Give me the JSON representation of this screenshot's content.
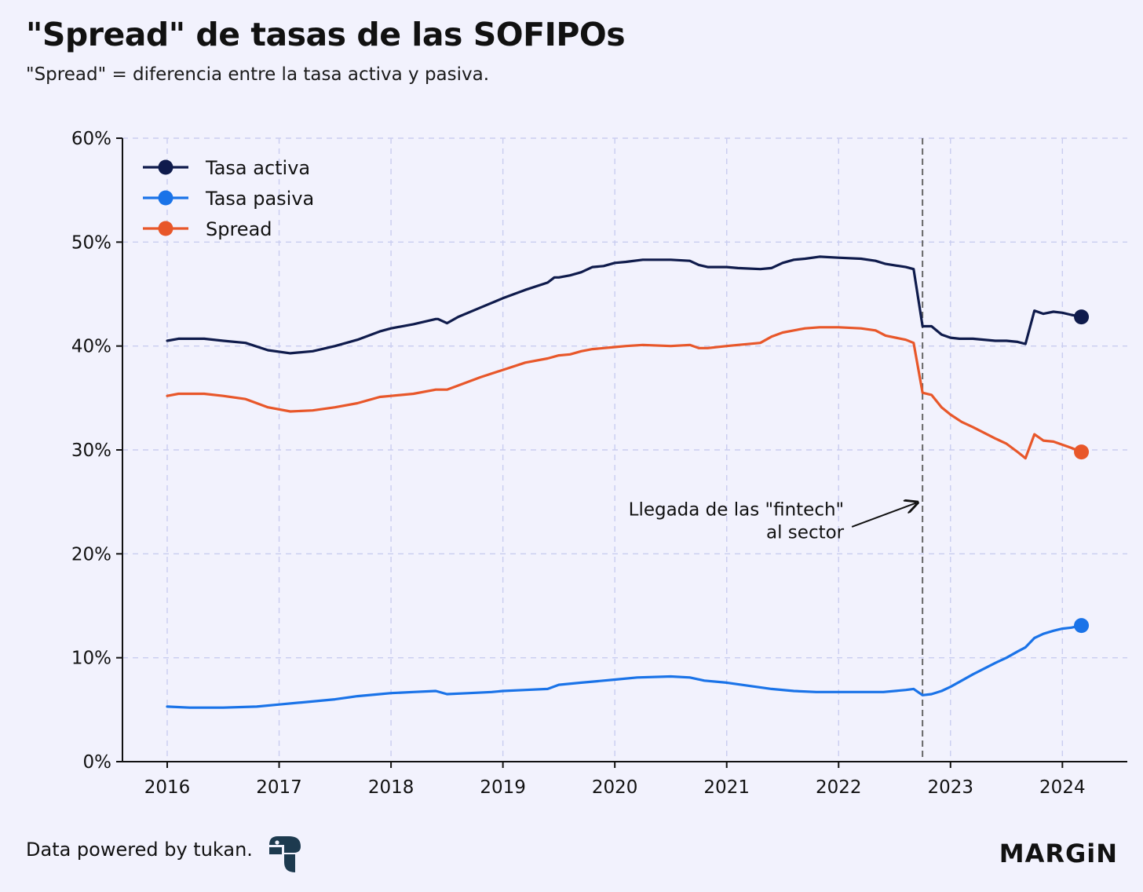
{
  "title": "\"Spread\" de tasas de las SOFIPOs",
  "subtitle": "\"Spread\" = diferencia entre la tasa activa y pasiva.",
  "footer": {
    "credit": "Data powered by tukan.",
    "brand": "MARGiN",
    "logo_icon": "tukan-logo-icon"
  },
  "colors": {
    "background": "#f2f2fd",
    "grid": "#c9cdf0",
    "axis": "#111111",
    "activa": "#0f1b4c",
    "pasiva": "#1a73e8",
    "spread": "#e8572a",
    "annotation_line": "#666666"
  },
  "chart_data": {
    "type": "line",
    "title": "\"Spread\" de tasas de las SOFIPOs",
    "subtitle": "\"Spread\" = diferencia entre la tasa activa y pasiva.",
    "xlabel": "",
    "ylabel": "",
    "xlim": [
      2015.6,
      2024.58
    ],
    "ylim": [
      0,
      60
    ],
    "x_ticks": [
      2016,
      2017,
      2018,
      2019,
      2020,
      2021,
      2022,
      2023,
      2024
    ],
    "x_tick_labels": [
      "2016",
      "2017",
      "2018",
      "2019",
      "2020",
      "2021",
      "2022",
      "2023",
      "2024"
    ],
    "y_ticks": [
      0,
      10,
      20,
      30,
      40,
      50,
      60
    ],
    "y_tick_labels": [
      "0%",
      "10%",
      "20%",
      "30%",
      "40%",
      "50%",
      "60%"
    ],
    "grid": true,
    "legend_position": "top-left",
    "series": [
      {
        "name": "Tasa activa",
        "color": "#0f1b4c",
        "x": [
          2016.0,
          2016.1,
          2016.33,
          2016.5,
          2016.7,
          2016.9,
          2017.1,
          2017.3,
          2017.5,
          2017.7,
          2017.9,
          2018.0,
          2018.2,
          2018.4,
          2018.42,
          2018.5,
          2018.6,
          2018.8,
          2019.0,
          2019.2,
          2019.4,
          2019.46,
          2019.5,
          2019.6,
          2019.7,
          2019.8,
          2019.9,
          2020.0,
          2020.1,
          2020.25,
          2020.5,
          2020.67,
          2020.75,
          2020.83,
          2021.0,
          2021.1,
          2021.3,
          2021.4,
          2021.5,
          2021.6,
          2021.7,
          2021.83,
          2022.0,
          2022.2,
          2022.33,
          2022.42,
          2022.6,
          2022.67,
          2022.75,
          2022.83,
          2022.92,
          2023.0,
          2023.08,
          2023.2,
          2023.4,
          2023.5,
          2023.6,
          2023.67,
          2023.75,
          2023.83,
          2023.92,
          2024.0,
          2024.08,
          2024.17
        ],
        "values": [
          40.5,
          40.7,
          40.7,
          40.5,
          40.3,
          39.6,
          39.3,
          39.5,
          40.0,
          40.6,
          41.4,
          41.7,
          42.1,
          42.6,
          42.6,
          42.2,
          42.8,
          43.7,
          44.6,
          45.4,
          46.1,
          46.6,
          46.6,
          46.8,
          47.1,
          47.6,
          47.7,
          48.0,
          48.1,
          48.3,
          48.3,
          48.2,
          47.8,
          47.6,
          47.6,
          47.5,
          47.4,
          47.5,
          48.0,
          48.3,
          48.4,
          48.6,
          48.5,
          48.4,
          48.2,
          47.9,
          47.6,
          47.4,
          41.9,
          41.9,
          41.1,
          40.8,
          40.7,
          40.7,
          40.5,
          40.5,
          40.4,
          40.2,
          43.4,
          43.1,
          43.3,
          43.2,
          43.0,
          42.8
        ]
      },
      {
        "name": "Tasa pasiva",
        "color": "#1a73e8",
        "x": [
          2016.0,
          2016.2,
          2016.5,
          2016.8,
          2017.0,
          2017.2,
          2017.5,
          2017.7,
          2017.9,
          2018.0,
          2018.2,
          2018.4,
          2018.5,
          2018.7,
          2018.9,
          2019.0,
          2019.2,
          2019.4,
          2019.5,
          2019.7,
          2019.9,
          2020.0,
          2020.2,
          2020.5,
          2020.67,
          2020.8,
          2021.0,
          2021.2,
          2021.4,
          2021.6,
          2021.8,
          2022.0,
          2022.2,
          2022.4,
          2022.6,
          2022.67,
          2022.75,
          2022.83,
          2022.92,
          2023.0,
          2023.1,
          2023.2,
          2023.4,
          2023.5,
          2023.6,
          2023.67,
          2023.75,
          2023.83,
          2023.92,
          2024.0,
          2024.08,
          2024.17
        ],
        "values": [
          5.3,
          5.2,
          5.2,
          5.3,
          5.5,
          5.7,
          6.0,
          6.3,
          6.5,
          6.6,
          6.7,
          6.8,
          6.5,
          6.6,
          6.7,
          6.8,
          6.9,
          7.0,
          7.4,
          7.6,
          7.8,
          7.9,
          8.1,
          8.2,
          8.1,
          7.8,
          7.6,
          7.3,
          7.0,
          6.8,
          6.7,
          6.7,
          6.7,
          6.7,
          6.9,
          7.0,
          6.4,
          6.5,
          6.8,
          7.2,
          7.8,
          8.4,
          9.5,
          10.0,
          10.6,
          11.0,
          11.9,
          12.3,
          12.6,
          12.8,
          12.9,
          13.1
        ]
      },
      {
        "name": "Spread",
        "color": "#e8572a",
        "x": [
          2016.0,
          2016.1,
          2016.33,
          2016.5,
          2016.7,
          2016.9,
          2017.1,
          2017.3,
          2017.5,
          2017.7,
          2017.9,
          2018.0,
          2018.2,
          2018.4,
          2018.5,
          2018.6,
          2018.8,
          2019.0,
          2019.2,
          2019.4,
          2019.5,
          2019.6,
          2019.7,
          2019.8,
          2019.9,
          2020.0,
          2020.1,
          2020.25,
          2020.5,
          2020.67,
          2020.75,
          2020.83,
          2021.0,
          2021.1,
          2021.3,
          2021.4,
          2021.5,
          2021.6,
          2021.7,
          2021.83,
          2022.0,
          2022.2,
          2022.33,
          2022.42,
          2022.6,
          2022.67,
          2022.75,
          2022.83,
          2022.92,
          2023.0,
          2023.1,
          2023.2,
          2023.4,
          2023.5,
          2023.6,
          2023.67,
          2023.75,
          2023.83,
          2023.92,
          2024.0,
          2024.08,
          2024.17
        ],
        "values": [
          35.2,
          35.4,
          35.4,
          35.2,
          34.9,
          34.1,
          33.7,
          33.8,
          34.1,
          34.5,
          35.1,
          35.2,
          35.4,
          35.8,
          35.8,
          36.2,
          37.0,
          37.7,
          38.4,
          38.8,
          39.1,
          39.2,
          39.5,
          39.7,
          39.8,
          39.9,
          40.0,
          40.1,
          40.0,
          40.1,
          39.8,
          39.8,
          40.0,
          40.1,
          40.3,
          40.9,
          41.3,
          41.5,
          41.7,
          41.8,
          41.8,
          41.7,
          41.5,
          41.0,
          40.6,
          40.3,
          35.5,
          35.3,
          34.1,
          33.4,
          32.7,
          32.2,
          31.1,
          30.6,
          29.8,
          29.2,
          31.5,
          30.9,
          30.8,
          30.5,
          30.2,
          29.8
        ]
      }
    ],
    "annotations": [
      {
        "text_line1": "Llegada de las \"fintech\"",
        "text_line2": "al sector",
        "x": 2022.75,
        "style": "vertical-dashed-line-with-arrow"
      }
    ]
  }
}
